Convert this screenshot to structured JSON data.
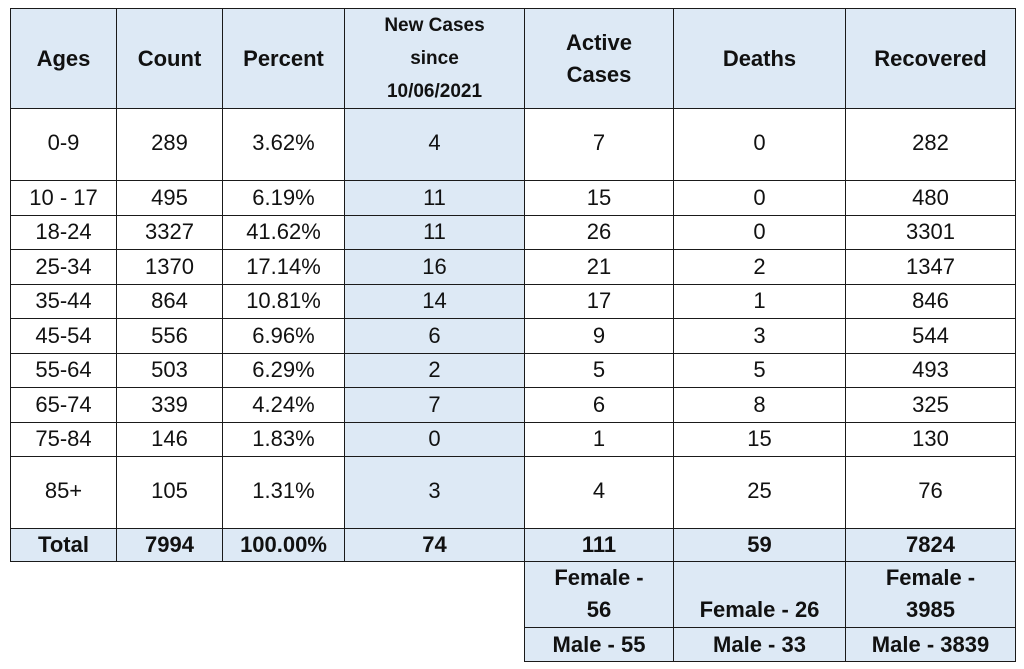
{
  "headers": {
    "ages": "Ages",
    "count": "Count",
    "percent": "Percent",
    "new_cases_1": "New Cases",
    "new_cases_2": "since",
    "new_cases_3": "10/06/2021",
    "active_1": "Active",
    "active_2": "Cases",
    "deaths": "Deaths",
    "recovered": "Recovered"
  },
  "rows": [
    {
      "ages": "0-9",
      "count": "289",
      "percent": "3.62%",
      "new": "4",
      "active": "7",
      "deaths": "0",
      "recovered": "282"
    },
    {
      "ages": "10 - 17",
      "count": "495",
      "percent": "6.19%",
      "new": "11",
      "active": "15",
      "deaths": "0",
      "recovered": "480"
    },
    {
      "ages": "18-24",
      "count": "3327",
      "percent": "41.62%",
      "new": "11",
      "active": "26",
      "deaths": "0",
      "recovered": "3301"
    },
    {
      "ages": "25-34",
      "count": "1370",
      "percent": "17.14%",
      "new": "16",
      "active": "21",
      "deaths": "2",
      "recovered": "1347"
    },
    {
      "ages": "35-44",
      "count": "864",
      "percent": "10.81%",
      "new": "14",
      "active": "17",
      "deaths": "1",
      "recovered": "846"
    },
    {
      "ages": "45-54",
      "count": "556",
      "percent": "6.96%",
      "new": "6",
      "active": "9",
      "deaths": "3",
      "recovered": "544"
    },
    {
      "ages": "55-64",
      "count": "503",
      "percent": "6.29%",
      "new": "2",
      "active": "5",
      "deaths": "5",
      "recovered": "493"
    },
    {
      "ages": "65-74",
      "count": "339",
      "percent": "4.24%",
      "new": "7",
      "active": "6",
      "deaths": "8",
      "recovered": "325"
    },
    {
      "ages": "75-84",
      "count": "146",
      "percent": "1.83%",
      "new": "0",
      "active": "1",
      "deaths": "15",
      "recovered": "130"
    },
    {
      "ages": "85+",
      "count": "105",
      "percent": "1.31%",
      "new": "3",
      "active": "4",
      "deaths": "25",
      "recovered": "76"
    }
  ],
  "total": {
    "label": "Total",
    "count": "7994",
    "percent": "100.00%",
    "new": "74",
    "active": "111",
    "deaths": "59",
    "recovered": "7824"
  },
  "sex": {
    "active_female_1": "Female -",
    "active_female_2": "56",
    "deaths_female": "Female - 26",
    "recovered_female_1": "Female -",
    "recovered_female_2": "3985",
    "active_male": "Male - 55",
    "deaths_male": "Male - 33",
    "recovered_male": "Male - 3839"
  },
  "colors": {
    "header_fill": "#dde9f5",
    "border": "#1a1a1a"
  }
}
